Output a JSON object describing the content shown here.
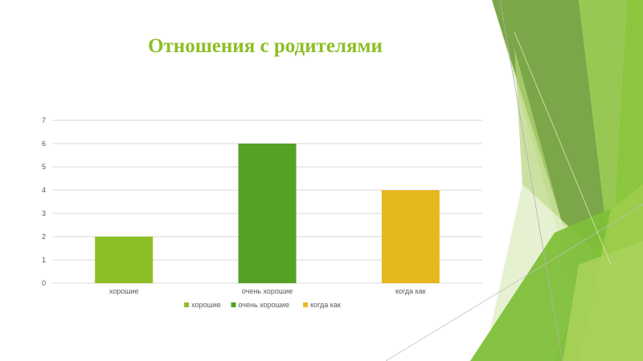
{
  "slide": {
    "title": "Отношения с родителями"
  },
  "colors": {
    "title": "#8cbf26",
    "grid": "#d9d9d9",
    "text": "#595959"
  },
  "chart_data": {
    "type": "bar",
    "title": "Отношения с родителями",
    "categories": [
      "хорошие",
      "очень хорошие",
      "когда как"
    ],
    "values": [
      2,
      6,
      4
    ],
    "bar_colors": [
      "#8cbf26",
      "#55a126",
      "#e6b820"
    ],
    "ylim": [
      0,
      7
    ],
    "yticks": [
      0,
      1,
      2,
      3,
      4,
      5,
      6,
      7
    ],
    "grid": true,
    "legend": {
      "position": "bottom",
      "entries": [
        {
          "label": "хорошие",
          "color": "#8cbf26"
        },
        {
          "label": "очень хорошие",
          "color": "#55a126"
        },
        {
          "label": "когда как",
          "color": "#e6b820"
        }
      ]
    }
  }
}
